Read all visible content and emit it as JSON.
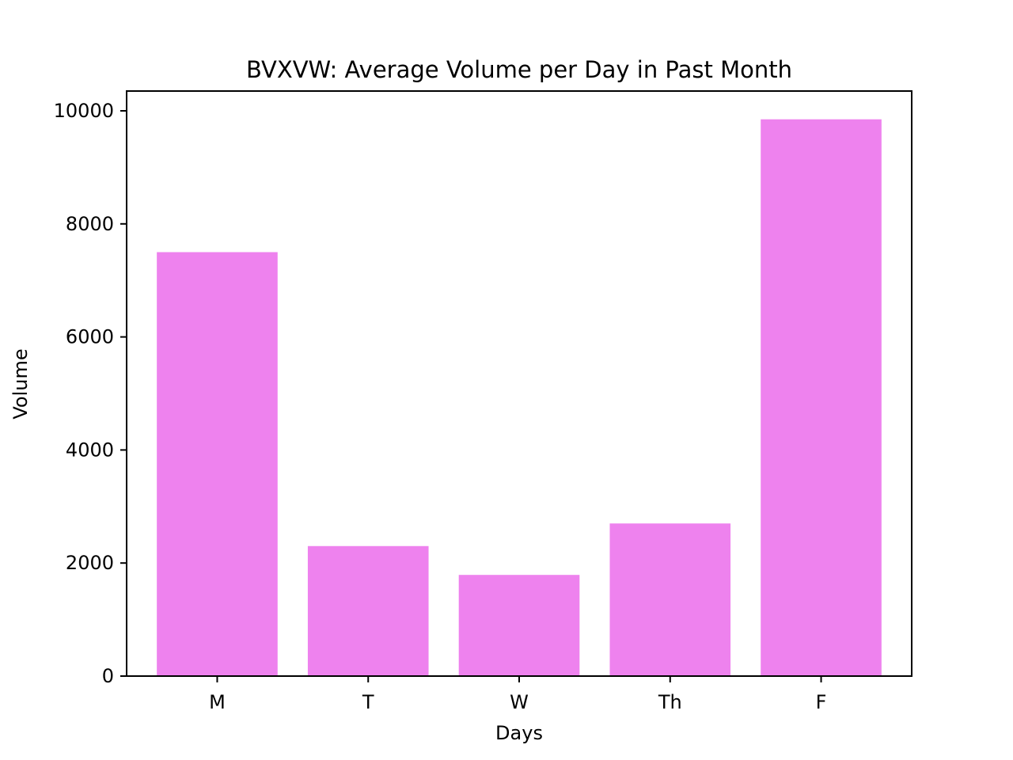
{
  "chart_data": {
    "type": "bar",
    "title": "BVXVW: Average Volume per Day in Past Month",
    "xlabel": "Days",
    "ylabel": "Volume",
    "categories": [
      "M",
      "T",
      "W",
      "Th",
      "F"
    ],
    "values": [
      7500,
      2300,
      1790,
      2700,
      9850
    ],
    "ylim": [
      0,
      10350
    ],
    "yticks": [
      0,
      2000,
      4000,
      6000,
      8000,
      10000
    ],
    "bar_color": "#ee82ee",
    "grid": false,
    "legend": "none"
  }
}
